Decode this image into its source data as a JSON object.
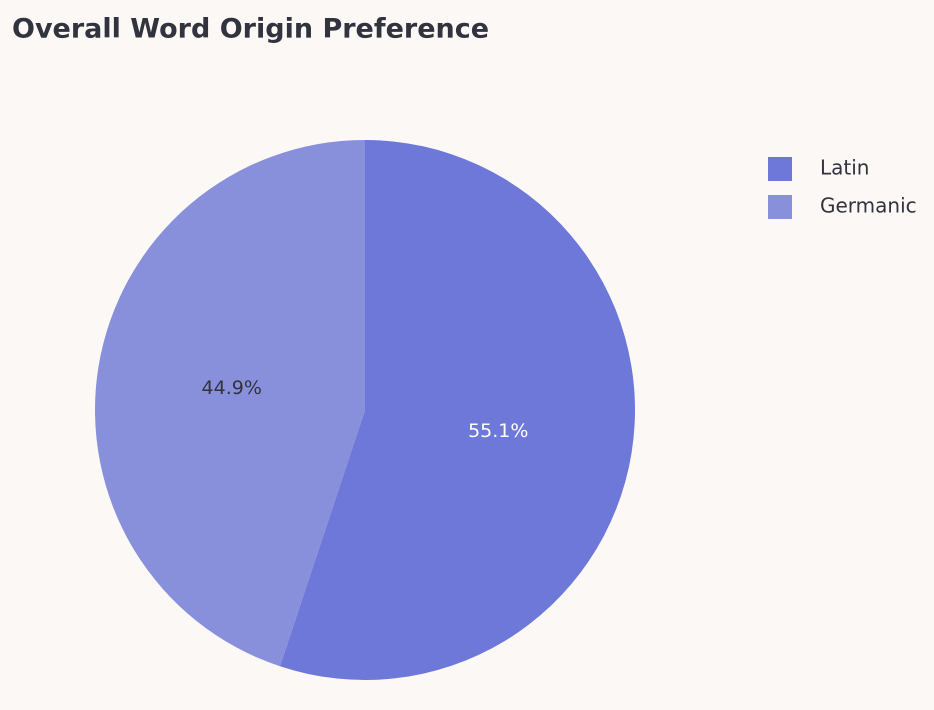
{
  "chart_data": {
    "type": "pie",
    "title": "Overall Word Origin Preference",
    "categories": [
      "Latin",
      "Germanic"
    ],
    "values": [
      55.1,
      44.9
    ],
    "value_labels": [
      "55.1%",
      "44.9%"
    ],
    "colors": [
      "#6e78d8",
      "#8890dc"
    ],
    "label_colors": [
      "#ffffff",
      "#31333f"
    ],
    "legend": "top-right"
  }
}
